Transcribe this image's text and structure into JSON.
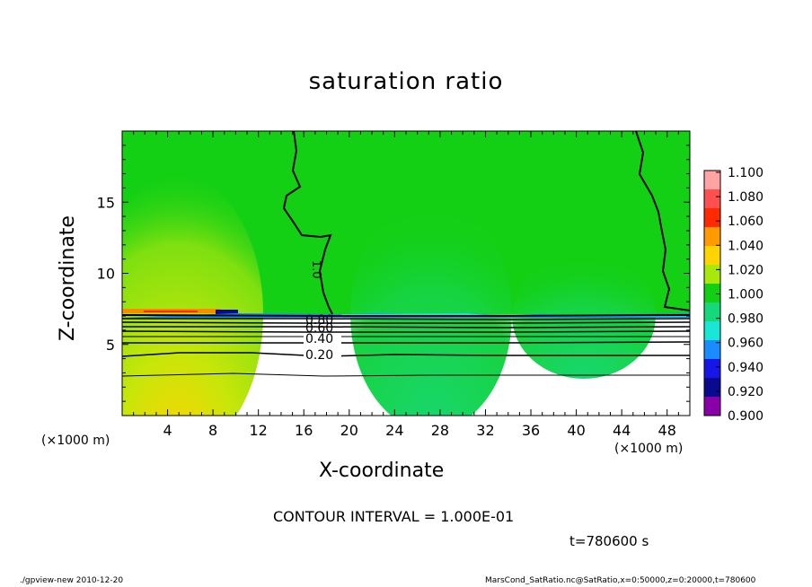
{
  "chart_data": {
    "type": "heatmap",
    "title": "saturation ratio",
    "xlabel": "X-coordinate",
    "ylabel": "Z-coordinate",
    "x_unit": "(×1000 m)",
    "y_unit": "(×1000 m)",
    "xlim": [
      0,
      50
    ],
    "ylim": [
      0,
      20
    ],
    "x_ticks": [
      4,
      8,
      12,
      16,
      20,
      24,
      28,
      32,
      36,
      40,
      44,
      48
    ],
    "y_ticks": [
      5,
      10,
      15
    ],
    "colorbar": {
      "levels": [
        "1.100",
        "1.080",
        "1.060",
        "1.040",
        "1.020",
        "1.000",
        "0.980",
        "0.960",
        "0.940",
        "0.920",
        "0.900"
      ],
      "colors": [
        "#ffa3a3",
        "#ff5050",
        "#ff2a00",
        "#ff9a00",
        "#ffd400",
        "#a8e80b",
        "#12cf12",
        "#13d97a",
        "#1ae6d6",
        "#1a8cff",
        "#1616e6",
        "#0a0a90",
        "#8a00a8"
      ]
    },
    "contour_labels": [
      "0.20",
      "0.40",
      "0.60",
      "0.80",
      "1.0"
    ],
    "annotations": {
      "contour_interval": "CONTOUR INTERVAL = 1.000E-01",
      "time": "t=780600 s"
    }
  },
  "footer": {
    "left": "./gpview-new   2010-12-20",
    "right": "MarsCond_SatRatio.nc@SatRatio,x=0:50000,z=0:20000,t=780600"
  }
}
